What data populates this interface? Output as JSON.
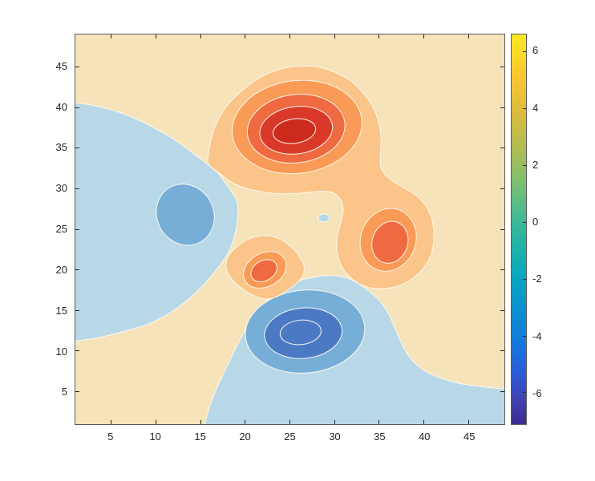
{
  "figure": {
    "background": "#ffffff"
  },
  "chart_data": {
    "type": "heatmap",
    "subtype": "filled-contour",
    "title": "",
    "xlabel": "",
    "ylabel": "",
    "grid": false,
    "x": {
      "range": [
        1,
        49
      ],
      "ticks": [
        5,
        10,
        15,
        20,
        25,
        30,
        35,
        40,
        45
      ]
    },
    "y": {
      "range": [
        1,
        49
      ],
      "ticks": [
        5,
        10,
        15,
        20,
        25,
        30,
        35,
        40,
        45
      ]
    },
    "colorbar": {
      "position": "right",
      "range": [
        -7.1,
        6.6
      ],
      "ticks": [
        -6,
        -4,
        -2,
        0,
        2,
        4,
        6
      ],
      "colormap": "parula",
      "stops": [
        {
          "t": 0.0,
          "c": "#3b2d90"
        },
        {
          "t": 0.06,
          "c": "#4040b0"
        },
        {
          "t": 0.13,
          "c": "#2a5cd8"
        },
        {
          "t": 0.21,
          "c": "#1379dd"
        },
        {
          "t": 0.29,
          "c": "#0b90d0"
        },
        {
          "t": 0.37,
          "c": "#07a4c0"
        },
        {
          "t": 0.45,
          "c": "#1cb2aa"
        },
        {
          "t": 0.53,
          "c": "#42ba94"
        },
        {
          "t": 0.62,
          "c": "#7dbf70"
        },
        {
          "t": 0.71,
          "c": "#b1bd53"
        },
        {
          "t": 0.8,
          "c": "#dcbb3d"
        },
        {
          "t": 0.89,
          "c": "#fac531"
        },
        {
          "t": 0.95,
          "c": "#fbda28"
        },
        {
          "t": 1.0,
          "c": "#f8e821"
        }
      ]
    },
    "contour_level_step": 1,
    "features": [
      {
        "kind": "maximum",
        "x": 25.5,
        "y": 37.5,
        "value": 8.1
      },
      {
        "kind": "minimum",
        "x": 26.6,
        "y": 12.2,
        "value": -6.5
      },
      {
        "kind": "local-maximum",
        "x": 36.3,
        "y": 23.5,
        "value": 3.8
      },
      {
        "kind": "local-maximum",
        "x": 21.8,
        "y": 20.0,
        "value": 3.6
      },
      {
        "kind": "local-minimum",
        "x": 13.3,
        "y": 26.8,
        "value": -3.0
      },
      {
        "kind": "zero-island",
        "x": 28.8,
        "y": 26.4,
        "value": 0.0
      }
    ],
    "band_colors": {
      "cream": "#f6e3ba",
      "blue_light": "#b8d8e8",
      "blue_mid": "#77aed7",
      "blue_dark": "#4b79c4",
      "orange_pale": "#fbc488",
      "orange": "#f99a56",
      "orange_red": "#ef6a40",
      "red": "#da392a",
      "red_dark": "#cb2b1d",
      "line": "#fdf9ee"
    },
    "axis_color": "#262626",
    "tick_direction": "in"
  }
}
